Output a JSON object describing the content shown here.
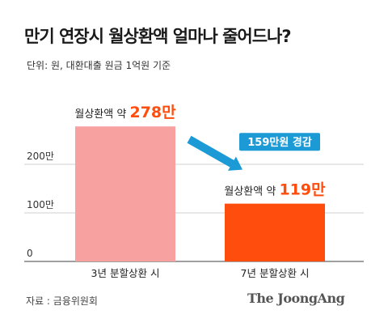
{
  "header": {
    "title": "만기 연장시 월상환액 얼마나 줄어드나?",
    "unit": "단위: 원, 대환대출 원금 1억원 기준"
  },
  "chart_data": {
    "type": "bar",
    "categories": [
      "3년 분할상환 시",
      "7년 분할상환 시"
    ],
    "values": [
      278,
      119
    ],
    "colors": [
      "#f7a1a1",
      "#ff4d0d"
    ],
    "value_labels": [
      {
        "prefix": "월상환액 약 ",
        "number": "278",
        "suffix": "만"
      },
      {
        "prefix": "월상환액 약 ",
        "number": "119",
        "suffix": "만"
      }
    ],
    "y_ticks": [
      0,
      100,
      200
    ],
    "y_tick_labels": [
      "0",
      "100만",
      "200만"
    ],
    "ylim": [
      0,
      280
    ],
    "annotation": "159만원 경감",
    "annotation_color": "#1b9ad6",
    "grid": true
  },
  "footer": {
    "source": "자료 : 금융위원회",
    "brand": "The JoongAng"
  }
}
